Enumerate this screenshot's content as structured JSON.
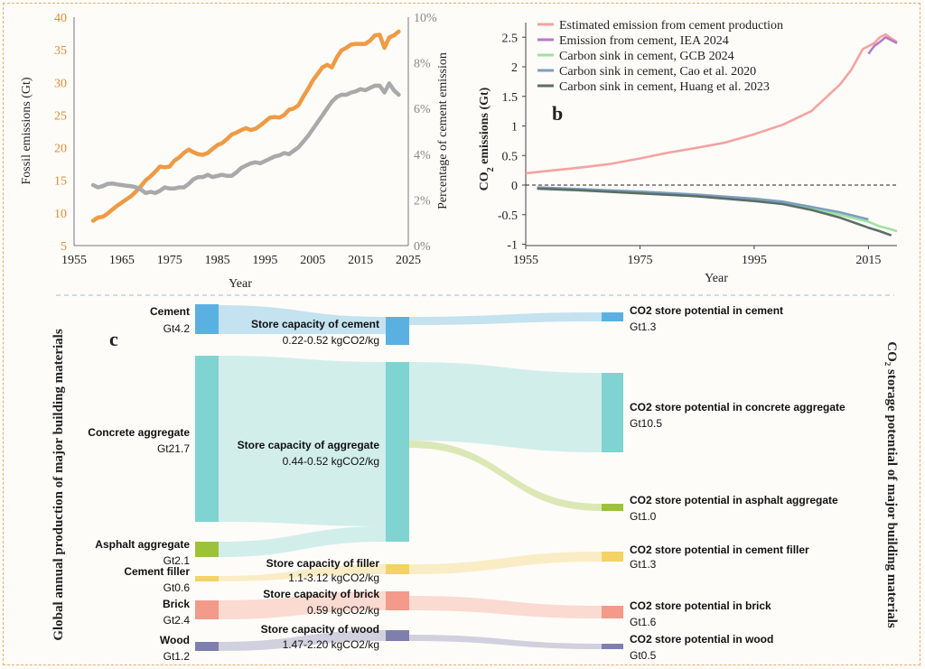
{
  "chart_data": [
    {
      "panel": "",
      "type": "line",
      "xlabel": "Year",
      "ylabel": "Fossil emissions (Gt)",
      "y2label": "Percentage of cement emission",
      "xlim": [
        1955,
        2025
      ],
      "ylim": [
        5,
        40
      ],
      "y2lim": [
        0,
        10
      ],
      "xticks": [
        1955,
        1965,
        1975,
        1985,
        1995,
        2005,
        2015,
        2025
      ],
      "yticks": [
        5,
        10,
        15,
        20,
        25,
        30,
        35,
        40
      ],
      "y2ticks": [
        "0%",
        "2%",
        "4%",
        "6%",
        "8%",
        "10%"
      ],
      "y2tick_values": [
        0,
        2,
        4,
        6,
        8,
        10
      ],
      "grid": false,
      "series": [
        {
          "axis": "left",
          "color": "#ef9a44",
          "x": [
            1959,
            1960,
            1961,
            1962,
            1963,
            1964,
            1965,
            1966,
            1967,
            1968,
            1969,
            1970,
            1971,
            1972,
            1973,
            1974,
            1975,
            1976,
            1977,
            1978,
            1979,
            1980,
            1981,
            1982,
            1983,
            1984,
            1985,
            1986,
            1987,
            1988,
            1989,
            1990,
            1991,
            1992,
            1993,
            1994,
            1995,
            1996,
            1997,
            1998,
            1999,
            2000,
            2001,
            2002,
            2003,
            2004,
            2005,
            2006,
            2007,
            2008,
            2009,
            2010,
            2011,
            2012,
            2013,
            2014,
            2015,
            2016,
            2017,
            2018,
            2019,
            2020,
            2021,
            2022,
            2023
          ],
          "values": [
            8.8,
            9.3,
            9.4,
            9.9,
            10.5,
            11.1,
            11.6,
            12.1,
            12.6,
            13.3,
            14.1,
            15.0,
            15.6,
            16.3,
            17.1,
            17.0,
            17.1,
            18.0,
            18.5,
            19.2,
            19.7,
            19.3,
            19.0,
            18.9,
            19.2,
            19.8,
            20.4,
            20.7,
            21.3,
            22.0,
            22.3,
            22.7,
            23.0,
            22.7,
            22.9,
            23.4,
            24.0,
            24.6,
            24.7,
            24.6,
            25.0,
            25.8,
            26.0,
            26.5,
            27.8,
            29.0,
            30.3,
            31.3,
            32.3,
            32.7,
            32.3,
            33.8,
            34.9,
            35.3,
            35.8,
            35.9,
            35.9,
            35.9,
            36.4,
            37.2,
            37.3,
            35.3,
            36.9,
            37.2,
            37.8
          ]
        },
        {
          "axis": "right",
          "color": "#a9a9a9",
          "x": [
            1959,
            1960,
            1961,
            1962,
            1963,
            1964,
            1965,
            1966,
            1967,
            1968,
            1969,
            1970,
            1971,
            1972,
            1973,
            1974,
            1975,
            1976,
            1977,
            1978,
            1979,
            1980,
            1981,
            1982,
            1983,
            1984,
            1985,
            1986,
            1987,
            1988,
            1989,
            1990,
            1991,
            1992,
            1993,
            1994,
            1995,
            1996,
            1997,
            1998,
            1999,
            2000,
            2001,
            2002,
            2003,
            2004,
            2005,
            2006,
            2007,
            2008,
            2009,
            2010,
            2011,
            2012,
            2013,
            2014,
            2015,
            2016,
            2017,
            2018,
            2019,
            2020,
            2021,
            2022,
            2023
          ],
          "values": [
            2.65,
            2.55,
            2.6,
            2.7,
            2.72,
            2.68,
            2.65,
            2.62,
            2.6,
            2.55,
            2.45,
            2.3,
            2.35,
            2.3,
            2.4,
            2.55,
            2.5,
            2.5,
            2.55,
            2.55,
            2.7,
            2.9,
            3.0,
            3.0,
            3.1,
            3.0,
            3.05,
            3.1,
            3.05,
            3.05,
            3.2,
            3.4,
            3.5,
            3.6,
            3.65,
            3.6,
            3.7,
            3.8,
            3.9,
            3.95,
            4.05,
            4.0,
            4.15,
            4.3,
            4.55,
            4.8,
            5.1,
            5.4,
            5.7,
            6.0,
            6.3,
            6.5,
            6.6,
            6.6,
            6.7,
            6.75,
            6.85,
            6.8,
            6.9,
            7.0,
            7.0,
            6.7,
            7.1,
            6.8,
            6.6
          ]
        }
      ]
    },
    {
      "panel": "b",
      "type": "line",
      "xlabel": "Year",
      "ylabel": "CO2 emissions (Gt)",
      "ylabel_main": "CO",
      "ylabel_sub": "2",
      "ylabel_rest": " emissions (Gt)",
      "xlim": [
        1955,
        2020
      ],
      "ylim": [
        -1,
        2.7
      ],
      "xticks": [
        1955,
        1975,
        1995,
        2015
      ],
      "yticks": [
        -1,
        -0.5,
        0,
        0.5,
        1,
        1.5,
        2,
        2.5
      ],
      "ytick_labels": [
        "-1",
        "-0.5",
        "0",
        "0.5",
        "1",
        "1.5",
        "2",
        "2.5"
      ],
      "grid": false,
      "legend_position": "top",
      "series": [
        {
          "name": "Estimated emission from cement production",
          "color": "#f4a3a0",
          "x": [
            1955,
            1960,
            1965,
            1970,
            1975,
            1980,
            1985,
            1990,
            1995,
            2000,
            2005,
            2010,
            2012,
            2014,
            2015,
            2016,
            2017,
            2018,
            2019,
            2020
          ],
          "values": [
            0.2,
            0.25,
            0.3,
            0.36,
            0.45,
            0.55,
            0.63,
            0.72,
            0.86,
            1.02,
            1.25,
            1.7,
            1.95,
            2.3,
            2.35,
            2.4,
            2.5,
            2.55,
            2.48,
            2.42
          ]
        },
        {
          "name": "Emission from cement, IEA 2024",
          "color": "#b57bc8",
          "x": [
            2015,
            2016,
            2017,
            2018,
            2019,
            2020
          ],
          "values": [
            2.22,
            2.35,
            2.42,
            2.5,
            2.45,
            2.4
          ]
        },
        {
          "name": "Carbon sink in cement, GCB 2024",
          "color": "#9ee3a0",
          "x": [
            1957,
            1965,
            1975,
            1985,
            1995,
            2000,
            2005,
            2010,
            2015,
            2017,
            2019,
            2020
          ],
          "values": [
            -0.05,
            -0.08,
            -0.13,
            -0.18,
            -0.25,
            -0.3,
            -0.4,
            -0.5,
            -0.62,
            -0.7,
            -0.75,
            -0.78
          ]
        },
        {
          "name": "Carbon sink in cement, Cao et al. 2020",
          "color": "#7b9fc0",
          "x": [
            1957,
            1965,
            1975,
            1985,
            1995,
            2000,
            2005,
            2010,
            2015
          ],
          "values": [
            -0.04,
            -0.07,
            -0.11,
            -0.16,
            -0.23,
            -0.28,
            -0.37,
            -0.46,
            -0.58
          ]
        },
        {
          "name": "Carbon sink in cement, Huang et al. 2023",
          "color": "#5b6e66",
          "x": [
            1957,
            1965,
            1975,
            1985,
            1995,
            2000,
            2005,
            2010,
            2015,
            2017,
            2019
          ],
          "values": [
            -0.06,
            -0.09,
            -0.14,
            -0.19,
            -0.27,
            -0.32,
            -0.42,
            -0.55,
            -0.72,
            -0.78,
            -0.85
          ]
        }
      ]
    },
    {
      "panel": "c",
      "type": "sankey",
      "left_axis_label": "Global annual production of major building materials",
      "right_axis_label": "CO₂ storage potential of major building materials",
      "sources": [
        {
          "name": "Cement",
          "value_label": "Gt4.2",
          "value": 4.2,
          "color": "#5ab1e1"
        },
        {
          "name": "Concrete aggregate",
          "value_label": "Gt21.7",
          "value": 21.7,
          "color": "#7fd4d2"
        },
        {
          "name": "Asphalt aggregate",
          "value_label": "Gt2.1",
          "value": 2.1,
          "color": "#9cc23a"
        },
        {
          "name": "Cement filler",
          "value_label": "Gt0.6",
          "value": 0.6,
          "color": "#f3d266"
        },
        {
          "name": "Brick",
          "value_label": "Gt2.4",
          "value": 2.4,
          "color": "#f39a8a"
        },
        {
          "name": "Wood",
          "value_label": "Gt1.2",
          "value": 1.2,
          "color": "#7f7fae"
        }
      ],
      "capacities": [
        {
          "name": "Store capacity of cement",
          "range": "0.22-0.52 kgCO2/kg",
          "color": "#5ab1e1"
        },
        {
          "name": "Store capacity of aggregate",
          "range": "0.44-0.52 kgCO2/kg",
          "color": "#7fd4d2"
        },
        {
          "name": "Store capacity of filler",
          "range": "1.1-3.12 kgCO2/kg",
          "color": "#f3d266"
        },
        {
          "name": "Store capacity of brick",
          "range": "0.59 kgCO2/kg",
          "color": "#f39a8a"
        },
        {
          "name": "Store capacity of wood",
          "range": "1.47-2.20 kgCO2/kg",
          "color": "#7f7fae"
        }
      ],
      "targets": [
        {
          "name": "CO2 store potential in cement",
          "value_label": "Gt1.3",
          "value": 1.3,
          "color": "#5ab1e1"
        },
        {
          "name": "CO2 store potential in concrete aggregate",
          "value_label": "Gt10.5",
          "value": 10.5,
          "color": "#7fd4d2"
        },
        {
          "name": "CO2 store potential in asphalt aggregate",
          "value_label": "Gt1.0",
          "value": 1.0,
          "color": "#9cc23a"
        },
        {
          "name": "CO2 store potential in cement filler",
          "value_label": "Gt1.3",
          "value": 1.3,
          "color": "#f3d266"
        },
        {
          "name": "CO2 store potential in brick",
          "value_label": "Gt1.6",
          "value": 1.6,
          "color": "#f39a8a"
        },
        {
          "name": "CO2 store potential in wood",
          "value_label": "Gt0.5",
          "value": 0.5,
          "color": "#7f7fae"
        }
      ]
    }
  ]
}
